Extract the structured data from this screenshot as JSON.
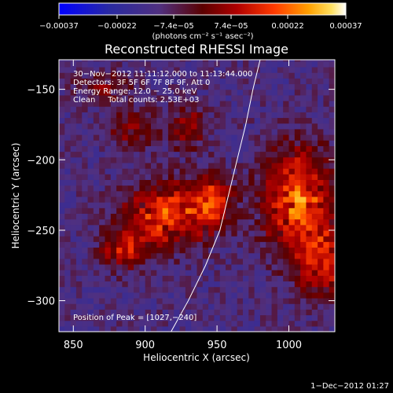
{
  "chart_data": {
    "type": "heatmap",
    "title": "Reconstructed RHESSI Image",
    "xlabel": "Heliocentric X (arcsec)",
    "ylabel": "Heliocentric Y (arcsec)",
    "xlim": [
      840,
      1032
    ],
    "ylim": [
      -322,
      -129
    ],
    "xticks": [
      850,
      900,
      950,
      1000
    ],
    "yticks": [
      -150,
      -200,
      -250,
      -300
    ],
    "xtick_labels": [
      "850",
      "900",
      "950",
      "1000"
    ],
    "ytick_labels": [
      "−150",
      "−200",
      "−250",
      "−300"
    ],
    "colorbar": {
      "min": -0.00037,
      "max": 0.00037,
      "tick_values": [
        -0.00037,
        -0.00022,
        -7.4e-05,
        7.4e-05,
        0.00022,
        0.00037
      ],
      "tick_labels": [
        "−0.00037",
        "−0.00022",
        "−7.4e−05",
        "7.4e−05",
        "0.00022",
        "0.00037"
      ],
      "unit_label": "(photons cm⁻² s⁻¹ asec⁻²)"
    },
    "annotations": {
      "line1": "30−Nov−2012 11:11:12.000 to 11:13:44.000",
      "line2": "Detectors: 3F 5F 6F 7F 8F 9F, Att 0",
      "line3": "Energy Range: 12.0 − 25.0 keV",
      "line4": "Clean     Total counts: 2.53E+03",
      "peak": "Position of Peak = [1027,−240]"
    },
    "limb_curve_points": [
      [
        918,
        -322
      ],
      [
        930,
        -300
      ],
      [
        942,
        -275
      ],
      [
        952,
        -250
      ],
      [
        958,
        -225
      ],
      [
        964,
        -200
      ],
      [
        970,
        -175
      ],
      [
        975,
        -150
      ],
      [
        980,
        -129
      ]
    ],
    "sources": [
      {
        "x": 915,
        "y": -240,
        "sx": 22,
        "sy": 16,
        "amp": 0.00028
      },
      {
        "x": 885,
        "y": -265,
        "sx": 13,
        "sy": 10,
        "amp": 0.0002
      },
      {
        "x": 945,
        "y": -230,
        "sx": 9,
        "sy": 12,
        "amp": 0.00022
      },
      {
        "x": 1005,
        "y": -230,
        "sx": 18,
        "sy": 26,
        "amp": 0.00032
      },
      {
        "x": 1020,
        "y": -275,
        "sx": 12,
        "sy": 18,
        "amp": 0.00022
      },
      {
        "x": 890,
        "y": -180,
        "sx": 12,
        "sy": 10,
        "amp": 0.00015
      },
      {
        "x": 870,
        "y": -150,
        "sx": 14,
        "sy": 8,
        "amp": 0.00012
      },
      {
        "x": 928,
        "y": -178,
        "sx": 10,
        "sy": 12,
        "amp": 0.00016
      }
    ]
  },
  "footer": {
    "timestamp": "1−Dec−2012 01:27"
  }
}
